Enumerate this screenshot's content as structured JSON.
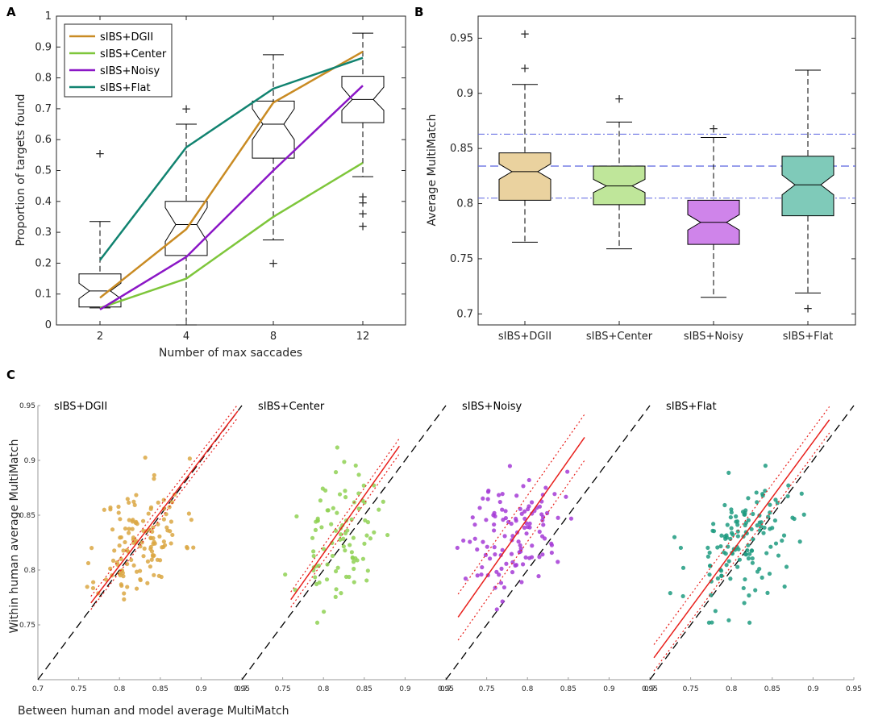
{
  "colors": {
    "dgii": "#c98b23",
    "center": "#7ec63b",
    "noisy": "#8b17c6",
    "flat": "#118370",
    "dgii_fill": "#ead29f",
    "center_fill": "#bfe69a",
    "noisy_fill": "#cf84ea",
    "flat_fill": "#7fcab9",
    "dgii_pt": "#dba743",
    "center_pt": "#8fd153",
    "noisy_pt": "#a53bd6",
    "flat_pt": "#1f9b80",
    "outlier": "#ff0000",
    "ref_line": "#5a63e0",
    "fit": "#e8201c"
  },
  "chart_data": [
    {
      "id": "A",
      "type": "line",
      "panel_letter": "A",
      "xlabel": "Number of max saccades",
      "ylabel": "Proportion of targets found",
      "ylim": [
        0,
        1
      ],
      "yticks": [
        0,
        0.1,
        0.2,
        0.3,
        0.4,
        0.5,
        0.6,
        0.7,
        0.8,
        0.9,
        1
      ],
      "categories": [
        "2",
        "4",
        "8",
        "12"
      ],
      "series": [
        {
          "name": "sIBS+DGII",
          "color_key": "dgii",
          "values": [
            0.088,
            0.31,
            0.72,
            0.885
          ]
        },
        {
          "name": "sIBS+Center",
          "color_key": "center",
          "values": [
            0.055,
            0.15,
            0.35,
            0.525
          ]
        },
        {
          "name": "sIBS+Noisy",
          "color_key": "noisy",
          "values": [
            0.05,
            0.22,
            0.5,
            0.775
          ]
        },
        {
          "name": "sIBS+Flat",
          "color_key": "flat",
          "values": [
            0.21,
            0.575,
            0.765,
            0.865
          ]
        }
      ],
      "boxes": [
        {
          "cat": "2",
          "lw": 0.055,
          "q1": 0.058,
          "med": 0.11,
          "q3": 0.165,
          "nlo": 0.085,
          "nhi": 0.135,
          "uw": 0.335,
          "outliers": [
            0.555
          ]
        },
        {
          "cat": "4",
          "lw": 0.0,
          "q1": 0.225,
          "med": 0.325,
          "q3": 0.4,
          "nlo": 0.27,
          "nhi": 0.38,
          "uw": 0.65,
          "outliers": [
            0.7
          ]
        },
        {
          "cat": "8",
          "lw": 0.275,
          "q1": 0.54,
          "med": 0.65,
          "q3": 0.725,
          "nlo": 0.6,
          "nhi": 0.7,
          "uw": 0.875,
          "outliers": [
            0.2
          ]
        },
        {
          "cat": "12",
          "lw": 0.48,
          "q1": 0.655,
          "med": 0.73,
          "q3": 0.805,
          "nlo": 0.695,
          "nhi": 0.77,
          "uw": 0.945,
          "outliers": [
            0.415,
            0.395,
            0.36,
            0.32
          ]
        }
      ]
    },
    {
      "id": "B",
      "type": "box",
      "panel_letter": "B",
      "ylabel": "Average MultiMatch",
      "ylim": [
        0.69,
        0.97
      ],
      "yticks": [
        0.7,
        0.75,
        0.8,
        0.85,
        0.9,
        0.95
      ],
      "categories": [
        "sIBS+DGII",
        "sIBS+Center",
        "sIBS+Noisy",
        "sIBS+Flat"
      ],
      "reference_lines": {
        "mean": 0.834,
        "lower": 0.805,
        "upper": 0.863
      },
      "boxes": [
        {
          "cat": "sIBS+DGII",
          "fill_key": "dgii_fill",
          "lw": 0.765,
          "q1": 0.803,
          "med": 0.829,
          "q3": 0.846,
          "nlo": 0.822,
          "nhi": 0.836,
          "uw": 0.908,
          "outliers": [
            0.954,
            0.923
          ]
        },
        {
          "cat": "sIBS+Center",
          "fill_key": "center_fill",
          "lw": 0.759,
          "q1": 0.799,
          "med": 0.816,
          "q3": 0.834,
          "nlo": 0.81,
          "nhi": 0.822,
          "uw": 0.874,
          "outliers": [
            0.895
          ]
        },
        {
          "cat": "sIBS+Noisy",
          "fill_key": "noisy_fill",
          "lw": 0.715,
          "q1": 0.763,
          "med": 0.783,
          "q3": 0.803,
          "nlo": 0.776,
          "nhi": 0.79,
          "uw": 0.86,
          "outliers": [
            0.868
          ]
        },
        {
          "cat": "sIBS+Flat",
          "fill_key": "flat_fill",
          "lw": 0.719,
          "q1": 0.789,
          "med": 0.817,
          "q3": 0.843,
          "nlo": 0.808,
          "nhi": 0.826,
          "uw": 0.921,
          "outliers": [
            0.705
          ]
        }
      ]
    },
    {
      "id": "C",
      "type": "scatter",
      "panel_letter": "C",
      "xlabel": "Between human and model average MultiMatch",
      "ylabel": "Within human average MultiMatch",
      "xlim": [
        0.7,
        0.95
      ],
      "ylim": [
        0.7,
        0.95
      ],
      "xticks": [
        0.7,
        0.75,
        0.8,
        0.85,
        0.9,
        0.95
      ],
      "yticks": [
        0.75,
        0.8,
        0.85,
        0.9,
        0.95
      ],
      "subplots": [
        {
          "title": "sIBS+DGII",
          "color_key": "dgii_pt",
          "center": [
            0.826,
            0.827
          ],
          "spread": [
            0.026,
            0.027
          ],
          "n": 130,
          "seed": 11,
          "fit": {
            "x0": 0.765,
            "y0": 0.77,
            "x1": 0.945,
            "y1": 0.945,
            "band": 0.006
          }
        },
        {
          "title": "sIBS+Center",
          "color_key": "center_pt",
          "center": [
            0.818,
            0.826
          ],
          "spread": [
            0.024,
            0.028
          ],
          "n": 90,
          "seed": 23,
          "fit": {
            "x0": 0.76,
            "y0": 0.773,
            "x1": 0.893,
            "y1": 0.913,
            "band": 0.007
          }
        },
        {
          "title": "sIBS+Noisy",
          "color_key": "noisy_pt",
          "center": [
            0.785,
            0.834
          ],
          "spread": [
            0.03,
            0.026
          ],
          "n": 115,
          "seed": 37,
          "fit": {
            "x0": 0.715,
            "y0": 0.757,
            "x1": 0.87,
            "y1": 0.921,
            "band": 0.021
          }
        },
        {
          "title": "sIBS+Flat",
          "color_key": "flat_pt",
          "center": [
            0.818,
            0.826
          ],
          "spread": [
            0.035,
            0.028
          ],
          "n": 135,
          "seed": 53,
          "fit": {
            "x0": 0.705,
            "y0": 0.72,
            "x1": 0.92,
            "y1": 0.937,
            "band": 0.012
          }
        }
      ]
    }
  ]
}
